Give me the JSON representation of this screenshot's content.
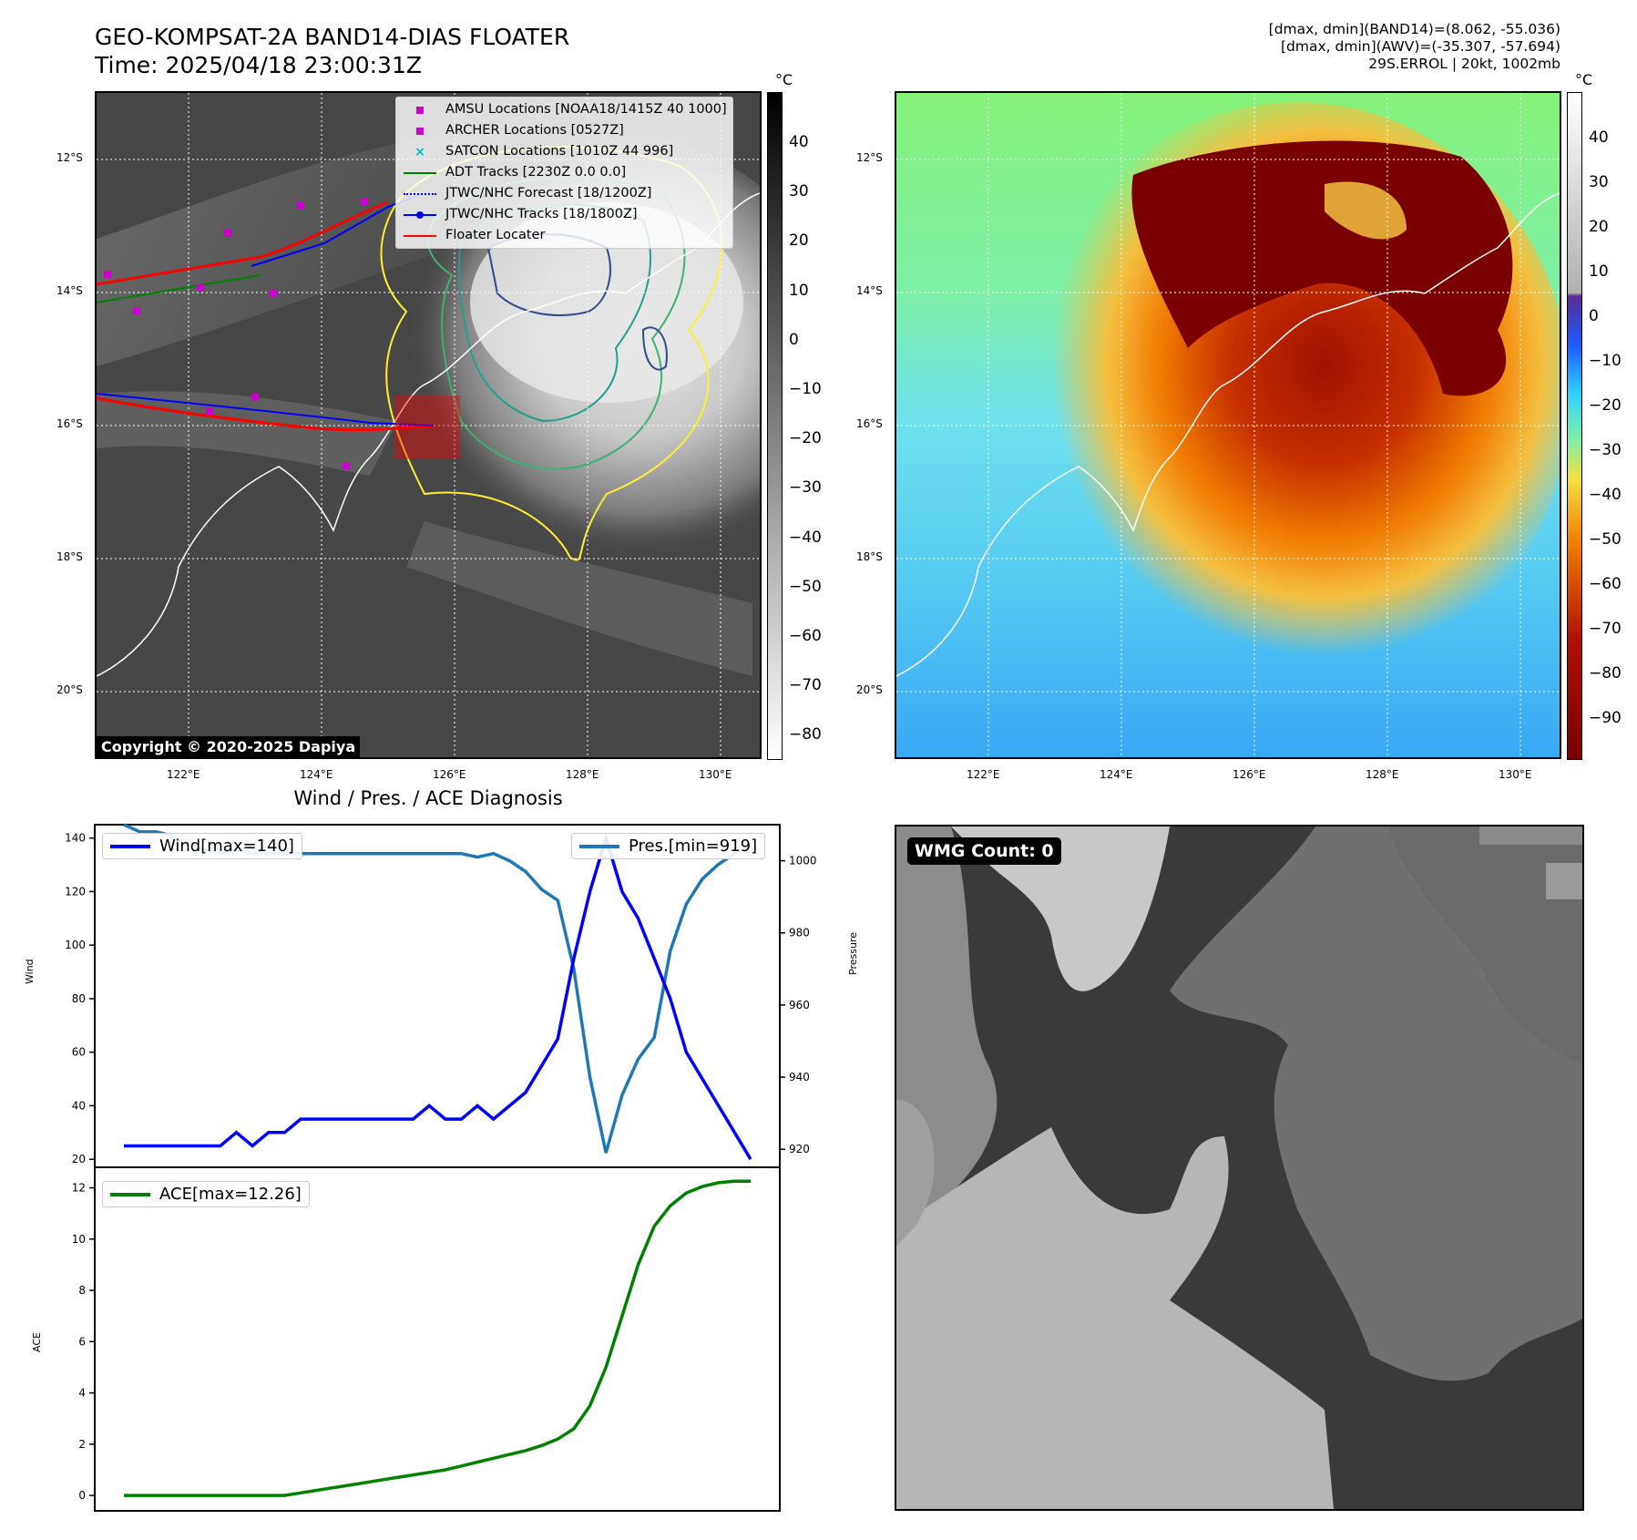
{
  "header": {
    "title_line1": "GEO-KOMPSAT-2A BAND14-DIAS FLOATER",
    "title_line2": "Time: 2025/04/18 23:00:31Z",
    "info_line1": "[dmax, dmin](BAND14)=(8.062, -55.036)",
    "info_line2": "[dmax, dmin](AWV)=(-35.307, -57.694)",
    "info_line3": "29S.ERROL | 20kt, 1002mb"
  },
  "map": {
    "lat_labels": [
      "12°S",
      "14°S",
      "16°S",
      "18°S",
      "20°S"
    ],
    "lon_labels": [
      "122°E",
      "124°E",
      "126°E",
      "128°E",
      "130°E"
    ],
    "copyright": "Copyright © 2020-2025 Dapiya",
    "colorbar_unit": "°C",
    "gray_ticks": [
      "40",
      "30",
      "20",
      "10",
      "0",
      "−10",
      "−20",
      "−30",
      "−40",
      "−50",
      "−60",
      "−70",
      "−80"
    ],
    "color_ticks": [
      "40",
      "30",
      "20",
      "10",
      "0",
      "−10",
      "−20",
      "−30",
      "−40",
      "−50",
      "−60",
      "−70",
      "−80",
      "−90"
    ],
    "legend": [
      {
        "label": "AMSU Locations [NOAA18/1415Z 40 1000]",
        "color": "#cc00cc",
        "icon": "square-marker"
      },
      {
        "label": "ARCHER Locations [0527Z]",
        "color": "#cc00cc",
        "icon": "square-marker"
      },
      {
        "label": "SATCON Locations [1010Z 44 996]",
        "color": "#00bbbb",
        "icon": "x-marker"
      },
      {
        "label": "ADT Tracks [2230Z 0.0 0.0]",
        "color": "#008000",
        "icon": "line"
      },
      {
        "label": "JTWC/NHC Forecast [18/1200Z]",
        "color": "#0000ff",
        "icon": "dotted-line"
      },
      {
        "label": "JTWC/NHC Tracks [18/1800Z]",
        "color": "#0000ff",
        "icon": "line-dot"
      },
      {
        "label": "Floater Locater",
        "color": "#ff0000",
        "icon": "line"
      }
    ]
  },
  "diagnosis": {
    "title": "Wind / Pres. / ACE Diagnosis",
    "wind_legend": "Wind[max=140]",
    "pres_legend": "Pres.[min=919]",
    "ace_legend": "ACE[max=12.26]",
    "wind_axis_label": "Wind",
    "pres_axis_label": "Pressure",
    "ace_axis_label": "ACE",
    "colors": {
      "wind": "#0000ff",
      "pres": "#1f77b4",
      "ace": "#008000"
    }
  },
  "wmg": {
    "label": "WMG Count: 0"
  },
  "chart_data": [
    {
      "type": "line",
      "x": [
        0,
        1,
        2,
        3,
        4,
        5,
        6,
        7,
        8,
        9,
        10,
        11,
        12,
        13,
        14,
        15,
        16,
        17,
        18,
        19,
        20,
        21,
        22,
        23,
        24,
        25,
        26,
        27,
        28,
        29,
        30,
        31,
        32,
        33,
        34,
        35,
        36,
        37,
        38,
        39
      ],
      "series": [
        {
          "name": "Wind[max=140]",
          "axis": "left",
          "values": [
            25,
            25,
            25,
            25,
            25,
            25,
            25,
            30,
            25,
            30,
            30,
            35,
            35,
            35,
            35,
            35,
            35,
            35,
            35,
            40,
            35,
            35,
            40,
            35,
            40,
            45,
            55,
            65,
            95,
            120,
            140,
            120,
            110,
            95,
            80,
            60,
            50,
            40,
            30,
            20
          ]
        },
        {
          "name": "Pres.[min=919]",
          "axis": "right",
          "values": [
            1010,
            1008,
            1008,
            1007,
            1005,
            1003,
            1002,
            1003,
            1002,
            1002,
            1002,
            1002,
            1002,
            1002,
            1002,
            1002,
            1002,
            1002,
            1002,
            1002,
            1002,
            1002,
            1001,
            1002,
            1000,
            997,
            992,
            989,
            970,
            940,
            919,
            935,
            945,
            951,
            975,
            988,
            995,
            999,
            1002,
            1004
          ]
        }
      ],
      "ylabel": "Wind",
      "ylabel_right": "Pressure",
      "ylim": [
        17,
        145
      ],
      "ylim_right": [
        915,
        1010
      ],
      "yticks": [
        20,
        40,
        60,
        80,
        100,
        120,
        140
      ],
      "yticks_right": [
        920,
        940,
        960,
        980,
        1000
      ]
    },
    {
      "type": "line",
      "x": [
        0,
        1,
        2,
        3,
        4,
        5,
        6,
        7,
        8,
        9,
        10,
        11,
        12,
        13,
        14,
        15,
        16,
        17,
        18,
        19,
        20,
        21,
        22,
        23,
        24,
        25,
        26,
        27,
        28,
        29,
        30,
        31,
        32,
        33,
        34,
        35,
        36,
        37,
        38,
        39
      ],
      "series": [
        {
          "name": "ACE[max=12.26]",
          "values": [
            0,
            0,
            0,
            0,
            0,
            0,
            0,
            0,
            0,
            0,
            0,
            0.1,
            0.2,
            0.3,
            0.4,
            0.5,
            0.6,
            0.7,
            0.8,
            0.9,
            1.0,
            1.15,
            1.3,
            1.45,
            1.6,
            1.75,
            1.95,
            2.2,
            2.6,
            3.5,
            5.0,
            7.0,
            9.0,
            10.5,
            11.3,
            11.8,
            12.05,
            12.2,
            12.26,
            12.26
          ]
        }
      ],
      "ylabel": "ACE",
      "ylim": [
        -0.6,
        12.8
      ],
      "yticks": [
        0,
        2,
        4,
        6,
        8,
        10,
        12
      ]
    }
  ]
}
